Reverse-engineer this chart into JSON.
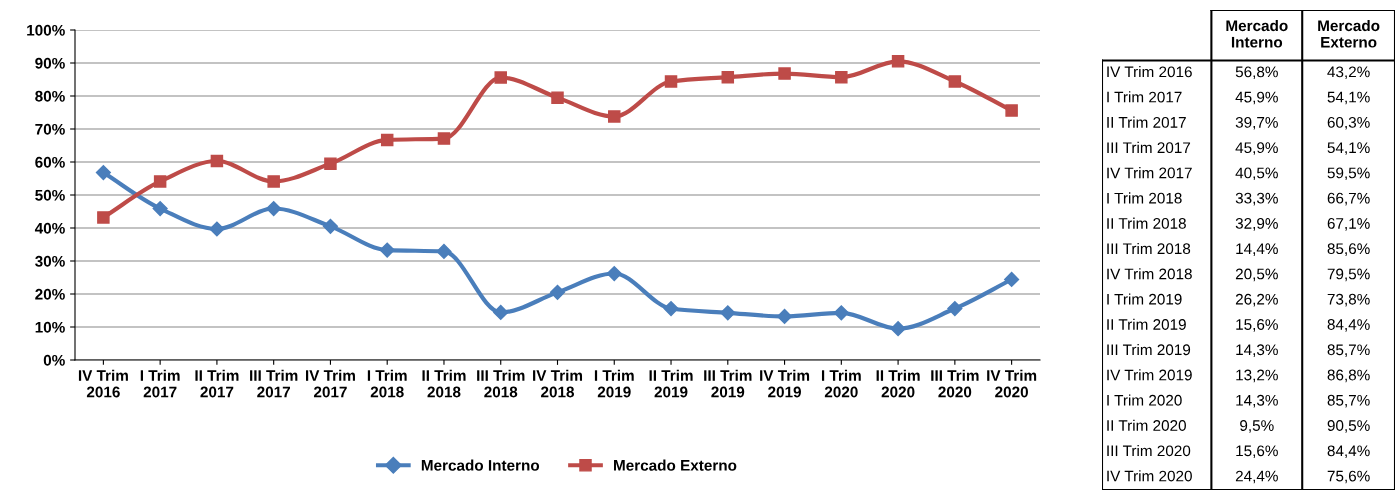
{
  "chart_data": [
    {
      "type": "line",
      "categories": [
        "IV Trim 2016",
        "I Trim 2017",
        "II Trim 2017",
        "III Trim 2017",
        "IV Trim 2017",
        "I Trim 2018",
        "II Trim 2018",
        "III Trim 2018",
        "IV Trim 2018",
        "I Trim 2019",
        "II Trim 2019",
        "III Trim 2019",
        "IV Trim 2019",
        "I Trim 2020",
        "II Trim 2020",
        "III Trim 2020",
        "IV Trim 2020"
      ],
      "series": [
        {
          "name": "Mercado Interno",
          "color": "#4a7ebb",
          "marker": "diamond",
          "values": [
            56.8,
            45.9,
            39.7,
            45.9,
            40.5,
            33.3,
            32.9,
            14.4,
            20.5,
            26.2,
            15.6,
            14.3,
            13.2,
            14.3,
            9.5,
            15.6,
            24.4
          ]
        },
        {
          "name": "Mercado Externo",
          "color": "#be4b48",
          "marker": "square",
          "values": [
            43.2,
            54.1,
            60.3,
            54.1,
            59.5,
            66.7,
            67.1,
            85.6,
            79.5,
            73.8,
            84.4,
            85.7,
            86.8,
            85.7,
            90.5,
            84.4,
            75.6
          ]
        }
      ],
      "ylim": [
        0,
        100
      ],
      "yticks": [
        {
          "value": 0,
          "label": "0%"
        },
        {
          "value": 10,
          "label": "10%"
        },
        {
          "value": 20,
          "label": "20%"
        },
        {
          "value": 30,
          "label": "30%"
        },
        {
          "value": 40,
          "label": "40%"
        },
        {
          "value": 50,
          "label": "50%"
        },
        {
          "value": 60,
          "label": "60%"
        },
        {
          "value": 70,
          "label": "70%"
        },
        {
          "value": 80,
          "label": "80%"
        },
        {
          "value": 90,
          "label": "90%"
        },
        {
          "value": 100,
          "label": "100%"
        }
      ],
      "grid": "y",
      "legend": "bottom",
      "line_style": "solid"
    },
    {
      "type": "other",
      "annotations": [
        "Mercado Interno",
        "Mercado Externo",
        "IV Trim 2016",
        "56,8%",
        "43,2%",
        "I Trim 2017",
        "45,9%",
        "54,1%",
        "II Trim 2017",
        "39,7%",
        "60,3%",
        "III Trim 2017",
        "45,9%",
        "54,1%",
        "IV Trim 2017",
        "40,5%",
        "59,5%",
        "I Trim 2018",
        "33,3%",
        "66,7%",
        "II Trim 2018",
        "32,9%",
        "67,1%",
        "III Trim 2018",
        "14,4%",
        "85,6%",
        "IV Trim 2018",
        "20,5%",
        "79,5%",
        "I Trim 2019",
        "26,2%",
        "73,8%",
        "II Trim 2019",
        "15,6%",
        "84,4%",
        "III Trim 2019",
        "14,3%",
        "85,7%",
        "IV Trim 2019",
        "13,2%",
        "86,8%",
        "I Trim 2020",
        "14,3%",
        "85,7%",
        "II Trim 2020",
        "9,5%",
        "90,5%",
        "III Trim 2020",
        "15,6%",
        "84,4%",
        "IV Trim 2020",
        "24,4%",
        "75,6%"
      ]
    }
  ]
}
